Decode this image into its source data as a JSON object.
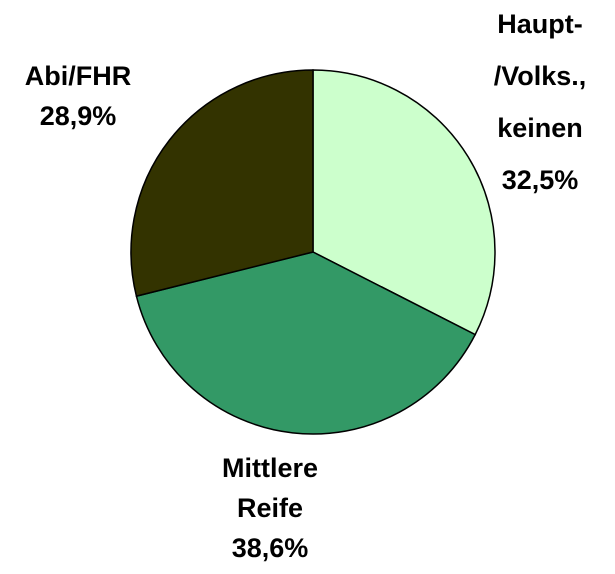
{
  "chart_data": {
    "type": "pie",
    "categories": [
      [
        "Haupt-",
        "/Volks.,",
        "keinen"
      ],
      [
        "Mittlere",
        "Reife"
      ],
      [
        "Abi/FHR"
      ]
    ],
    "values": [
      32.5,
      38.6,
      28.9
    ],
    "value_labels": [
      "32,5%",
      "38,6%",
      "28,9%"
    ],
    "colors": [
      "#ccffcc",
      "#339966",
      "#333300"
    ]
  }
}
